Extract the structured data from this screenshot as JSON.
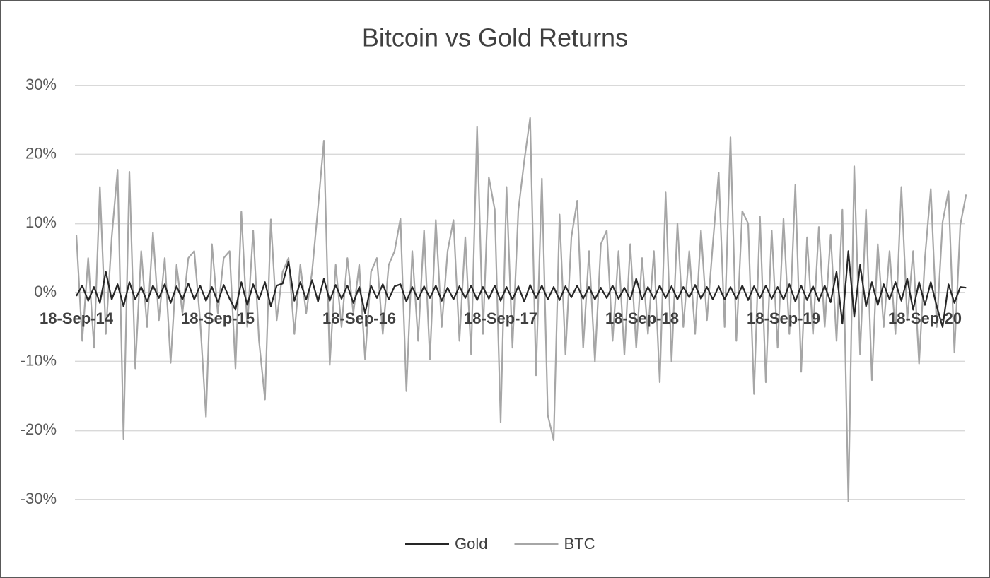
{
  "chart_data": {
    "type": "line",
    "title": "Bitcoin vs Gold Returns",
    "categories": [
      "18-Sep-14",
      null,
      null,
      null,
      null,
      null,
      null,
      null,
      null,
      null,
      null,
      null,
      null,
      null,
      null,
      null,
      null,
      null,
      null,
      null,
      null,
      null,
      null,
      null,
      "18-Sep-15",
      null,
      null,
      null,
      null,
      null,
      null,
      null,
      null,
      null,
      null,
      null,
      null,
      null,
      null,
      null,
      null,
      null,
      null,
      null,
      null,
      null,
      null,
      null,
      "18-Sep-16",
      null,
      null,
      null,
      null,
      null,
      null,
      null,
      null,
      null,
      null,
      null,
      null,
      null,
      null,
      null,
      null,
      null,
      null,
      null,
      null,
      null,
      null,
      null,
      "18-Sep-17",
      null,
      null,
      null,
      null,
      null,
      null,
      null,
      null,
      null,
      null,
      null,
      null,
      null,
      null,
      null,
      null,
      null,
      null,
      null,
      null,
      null,
      null,
      null,
      "18-Sep-18",
      null,
      null,
      null,
      null,
      null,
      null,
      null,
      null,
      null,
      null,
      null,
      null,
      null,
      null,
      null,
      null,
      null,
      null,
      null,
      null,
      null,
      null,
      null,
      "18-Sep-19",
      null,
      null,
      null,
      null,
      null,
      null,
      null,
      null,
      null,
      null,
      null,
      null,
      null,
      null,
      null,
      null,
      null,
      null,
      null,
      null,
      null,
      null,
      null,
      "18-Sep-20",
      null,
      null,
      null,
      null,
      null,
      null,
      null
    ],
    "series": [
      {
        "name": "BTC",
        "color": "#a6a6a6",
        "values": [
          8.4,
          -7,
          5,
          -8,
          15.3,
          -6,
          8,
          17.8,
          -21.2,
          17.5,
          -11,
          6,
          -5,
          8.7,
          -4,
          5,
          -10.2,
          4,
          -3,
          5,
          6,
          -4,
          -18,
          7,
          -3,
          5,
          6,
          -11,
          11.7,
          -5,
          9,
          -7,
          -15.5,
          10.6,
          -4,
          3,
          5,
          -6,
          4,
          -3,
          3,
          12.3,
          22,
          -10.5,
          4,
          -5,
          5,
          -3,
          4,
          -9.7,
          3,
          5,
          -6,
          4,
          6,
          10.7,
          -14.3,
          6,
          -7,
          9,
          -9.7,
          10.5,
          -5,
          6,
          10.5,
          -7,
          8,
          -9,
          24,
          -6,
          16.7,
          12,
          -18.8,
          15.3,
          -8,
          11.9,
          19,
          25.3,
          -12,
          16.5,
          -17.8,
          -21.4,
          11.3,
          -9,
          8,
          13.3,
          -8,
          6,
          -10,
          7,
          9,
          -7,
          6,
          -9,
          7,
          -8,
          5,
          -6,
          6,
          -13,
          14.5,
          -10,
          10,
          -5,
          6,
          -6,
          9,
          -4,
          7,
          17.4,
          -5,
          22.5,
          -7,
          11.8,
          10,
          -14.7,
          11,
          -13,
          9,
          -8,
          10.7,
          -6,
          15.6,
          -11.5,
          8,
          -6,
          9.5,
          -5,
          8.4,
          -7,
          12,
          -30.3,
          18.3,
          -9,
          12,
          -12.7,
          7,
          -5,
          6,
          -6,
          15.3,
          -4,
          6,
          -10.3,
          5,
          15,
          -5,
          10.2,
          14.7,
          -8.7,
          9.8,
          14.2
        ]
      },
      {
        "name": "Gold",
        "color": "#262626",
        "values": [
          -0.5,
          1,
          -1.2,
          0.8,
          -1.5,
          3,
          -1,
          1.2,
          -2,
          1.5,
          -1,
          0.8,
          -1.3,
          1,
          -0.8,
          1.2,
          -1.5,
          0.9,
          -1,
          1.3,
          -1,
          1,
          -1.2,
          0.8,
          -1.4,
          1.1,
          -0.9,
          -2.5,
          1.5,
          -1.8,
          1.2,
          -1,
          1.5,
          -2,
          1,
          1.3,
          4.5,
          -1.2,
          1.5,
          -1,
          1.8,
          -1.3,
          2,
          -1.2,
          1.1,
          -0.9,
          1,
          -1.5,
          0.8,
          -3,
          1,
          -0.8,
          1.2,
          -1,
          0.9,
          1.2,
          -1.3,
          0.8,
          -1,
          0.9,
          -0.8,
          1,
          -1.2,
          0.7,
          -1,
          0.9,
          -0.8,
          1,
          -1.1,
          0.8,
          -0.9,
          1,
          -1.2,
          0.8,
          -1,
          0.9,
          -1.3,
          1.1,
          -0.8,
          1,
          -1,
          0.8,
          -1.1,
          0.9,
          -0.7,
          1,
          -0.9,
          0.8,
          -1,
          0.7,
          -0.8,
          1,
          -0.9,
          0.7,
          -1,
          2,
          -1,
          0.8,
          -0.9,
          1,
          -0.8,
          0.9,
          -1,
          0.8,
          -0.7,
          1.1,
          -0.9,
          0.8,
          -1,
          0.9,
          -1,
          0.8,
          -0.9,
          1,
          -1.1,
          0.9,
          -0.8,
          1,
          -0.9,
          0.8,
          -1,
          1.2,
          -1.3,
          1,
          -1.1,
          0.9,
          -1.2,
          1,
          -1.4,
          3,
          -4.5,
          6,
          -3.5,
          4,
          -2,
          1.5,
          -1.8,
          1.2,
          -1,
          1.5,
          -1.2,
          2,
          -2.5,
          1.5,
          -1.8,
          1.5,
          -2,
          -5,
          1.2,
          -1.5,
          0.8,
          0.7
        ]
      }
    ],
    "legend_order": [
      "Gold",
      "BTC"
    ],
    "ylim": [
      -30,
      30
    ],
    "yticks": [
      {
        "value": -30,
        "label": "-30%"
      },
      {
        "value": -20,
        "label": "-20%"
      },
      {
        "value": -10,
        "label": "-10%"
      },
      {
        "value": 0,
        "label": "0%"
      },
      {
        "value": 10,
        "label": "10%"
      },
      {
        "value": 20,
        "label": "20%"
      },
      {
        "value": 30,
        "label": "30%"
      }
    ],
    "grid": true,
    "legend": "bottom"
  }
}
